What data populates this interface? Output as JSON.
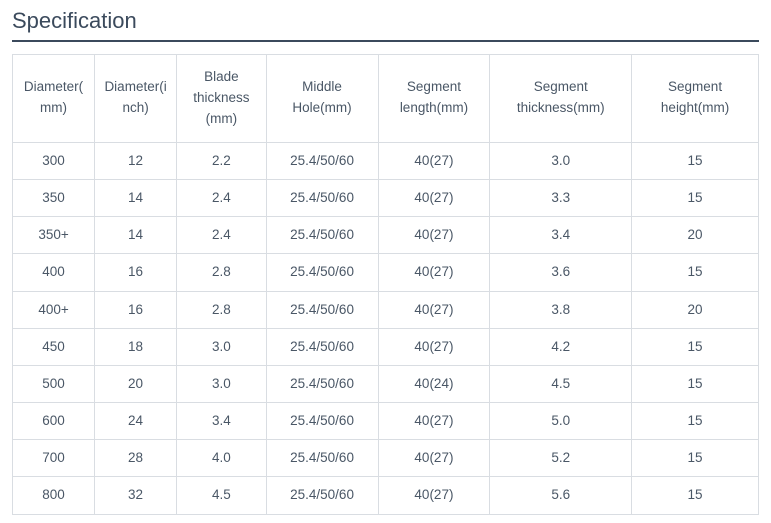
{
  "title": "Specification",
  "table": {
    "type": "table",
    "columns": [
      {
        "label": "Diameter(mm)",
        "width": "11%",
        "align": "center"
      },
      {
        "label": "Diameter(inch)",
        "width": "11%",
        "align": "center"
      },
      {
        "label": "Blade thickness (mm)",
        "width": "12%",
        "align": "center"
      },
      {
        "label": "Middle Hole(mm)",
        "width": "15%",
        "align": "center"
      },
      {
        "label": "Segment length(mm)",
        "width": "15%",
        "align": "center"
      },
      {
        "label": "Segment thickness(mm)",
        "width": "19%",
        "align": "center"
      },
      {
        "label": "Segment height(mm)",
        "width": "17%",
        "align": "center"
      }
    ],
    "rows": [
      [
        "300",
        "12",
        "2.2",
        "25.4/50/60",
        "40(27)",
        "3.0",
        "15"
      ],
      [
        "350",
        "14",
        "2.4",
        "25.4/50/60",
        "40(27)",
        "3.3",
        "15"
      ],
      [
        "350+",
        "14",
        "2.4",
        "25.4/50/60",
        "40(27)",
        "3.4",
        "20"
      ],
      [
        "400",
        "16",
        "2.8",
        "25.4/50/60",
        "40(27)",
        "3.6",
        "15"
      ],
      [
        "400+",
        "16",
        "2.8",
        "25.4/50/60",
        "40(27)",
        "3.8",
        "20"
      ],
      [
        "450",
        "18",
        "3.0",
        "25.4/50/60",
        "40(27)",
        "4.2",
        "15"
      ],
      [
        "500",
        "20",
        "3.0",
        "25.4/50/60",
        "40(24)",
        "4.5",
        "15"
      ],
      [
        "600",
        "24",
        "3.4",
        "25.4/50/60",
        "40(27)",
        "5.0",
        "15"
      ],
      [
        "700",
        "28",
        "4.0",
        "25.4/50/60",
        "40(27)",
        "5.2",
        "15"
      ],
      [
        "800",
        "32",
        "4.5",
        "25.4/50/60",
        "40(27)",
        "5.6",
        "15"
      ]
    ],
    "border_color": "#d9dde2",
    "text_color": "#4a5766",
    "title_color": "#3b4a5c",
    "title_underline_color": "#3b4a5c",
    "background_color": "#ffffff",
    "font_size_body": 13.5,
    "font_size_title": 22
  }
}
